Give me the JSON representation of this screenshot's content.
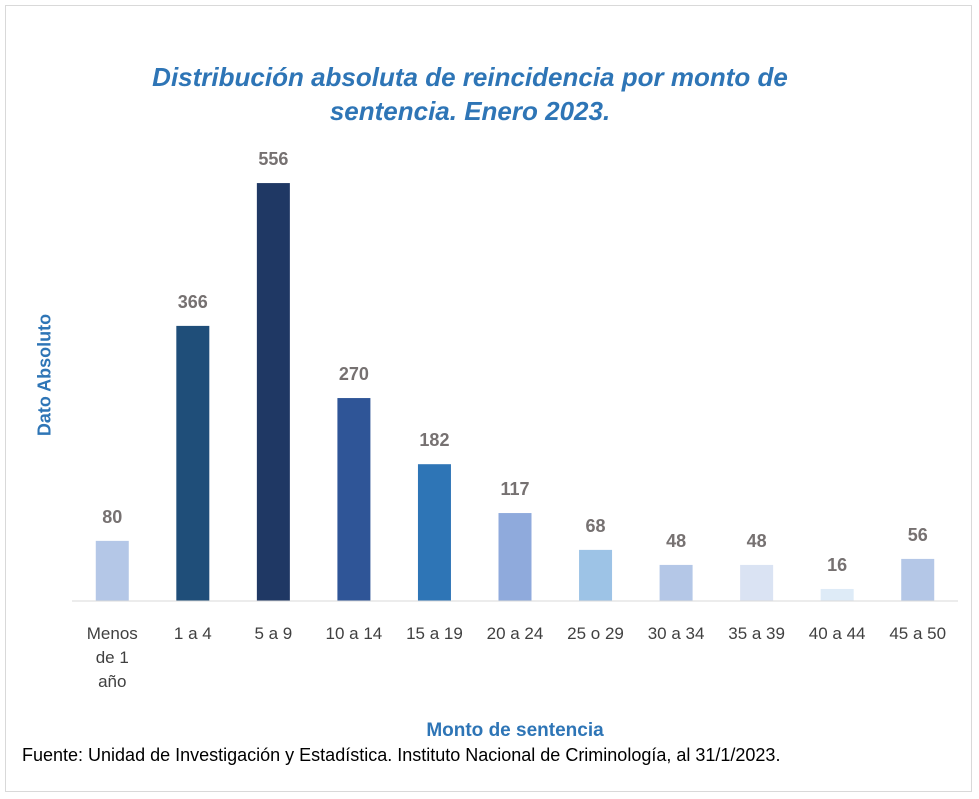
{
  "chart_data": {
    "type": "bar",
    "title": "Distribución absoluta de reincidencia por monto de sentencia. Enero 2023.",
    "x_label": "Monto de sentencia",
    "y_label": "Dato Absoluto",
    "source": "Fuente: Unidad de Investigación y Estadística. Instituto Nacional de Criminología, al 31/1/2023.",
    "categories": [
      "Menos de 1 año",
      "1 a 4",
      "5 a 9",
      "10 a 14",
      "15 a 19",
      "20 a 24",
      "25 o 29",
      "30 a 34",
      "35 a 39",
      "40 a 44",
      "45 a 50"
    ],
    "values": [
      80,
      366,
      556,
      270,
      182,
      117,
      68,
      48,
      48,
      16,
      56
    ],
    "colors": [
      "#b4c7e7",
      "#1f4e79",
      "#1f3864",
      "#2f5597",
      "#2e75b6",
      "#8faadc",
      "#9dc3e6",
      "#b4c7e7",
      "#dae3f3",
      "#deebf7",
      "#b4c7e7"
    ],
    "ylim": [
      0,
      600
    ]
  }
}
